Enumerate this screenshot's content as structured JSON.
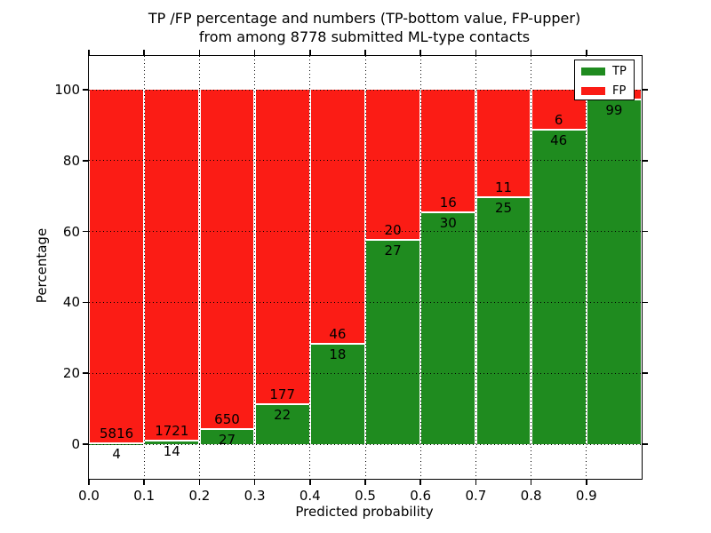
{
  "figure": {
    "title_line1": "TP /FP percentage and numbers (TP-bottom value, FP-upper)",
    "title_line2": "from among 8778 submitted ML-type contacts",
    "xlabel": "Predicted probability",
    "ylabel": "Percentage"
  },
  "legend": {
    "items": [
      {
        "label": "TP",
        "color": "#1f8b1f"
      },
      {
        "label": "FP",
        "color": "#fb1c15"
      }
    ]
  },
  "chart_data": {
    "type": "bar",
    "stacked": true,
    "title": "TP /FP percentage and numbers (TP-bottom value, FP-upper) from among 8778 submitted ML-type contacts",
    "xlabel": "Predicted probability",
    "ylabel": "Percentage",
    "xlim": [
      0.0,
      1.0
    ],
    "ylim": [
      -10,
      110
    ],
    "bin_width": 0.1,
    "x_tick_labels": [
      "0.0",
      "0.1",
      "0.2",
      "0.3",
      "0.4",
      "0.5",
      "0.6",
      "0.7",
      "0.8",
      "0.9"
    ],
    "y_tick_values": [
      0,
      20,
      40,
      60,
      80,
      100
    ],
    "y_tick_labels": [
      "0",
      "20",
      "40",
      "60",
      "80",
      "100"
    ],
    "grid": "dotted",
    "legend_position": "upper right",
    "colors": {
      "tp": "#1f8b1f",
      "fp": "#fb1c15"
    },
    "bars": [
      {
        "bin_start": 0.0,
        "tp_count": 4,
        "fp_count": 5816,
        "tp_pct": 0.07,
        "tp_label": "4",
        "fp_label": "5816"
      },
      {
        "bin_start": 0.1,
        "tp_count": 14,
        "fp_count": 1721,
        "tp_pct": 0.81,
        "tp_label": "14",
        "fp_label": "1721"
      },
      {
        "bin_start": 0.2,
        "tp_count": 27,
        "fp_count": 650,
        "tp_pct": 3.99,
        "tp_label": "27",
        "fp_label": "650"
      },
      {
        "bin_start": 0.3,
        "tp_count": 22,
        "fp_count": 177,
        "tp_pct": 11.06,
        "tp_label": "22",
        "fp_label": "177"
      },
      {
        "bin_start": 0.4,
        "tp_count": 18,
        "fp_count": 46,
        "tp_pct": 28.13,
        "tp_label": "18",
        "fp_label": "46"
      },
      {
        "bin_start": 0.5,
        "tp_count": 27,
        "fp_count": 20,
        "tp_pct": 57.45,
        "tp_label": "27",
        "fp_label": "20"
      },
      {
        "bin_start": 0.6,
        "tp_count": 30,
        "fp_count": 16,
        "tp_pct": 65.22,
        "tp_label": "30",
        "fp_label": "16"
      },
      {
        "bin_start": 0.7,
        "tp_count": 25,
        "fp_count": 11,
        "tp_pct": 69.44,
        "tp_label": "25",
        "fp_label": "11"
      },
      {
        "bin_start": 0.8,
        "tp_count": 46,
        "fp_count": 6,
        "tp_pct": 88.46,
        "tp_label": "46",
        "fp_label": "6"
      },
      {
        "bin_start": 0.9,
        "tp_count": 99,
        "fp_count": null,
        "tp_pct": 97.0,
        "tp_label": "99",
        "fp_label": ""
      }
    ]
  }
}
